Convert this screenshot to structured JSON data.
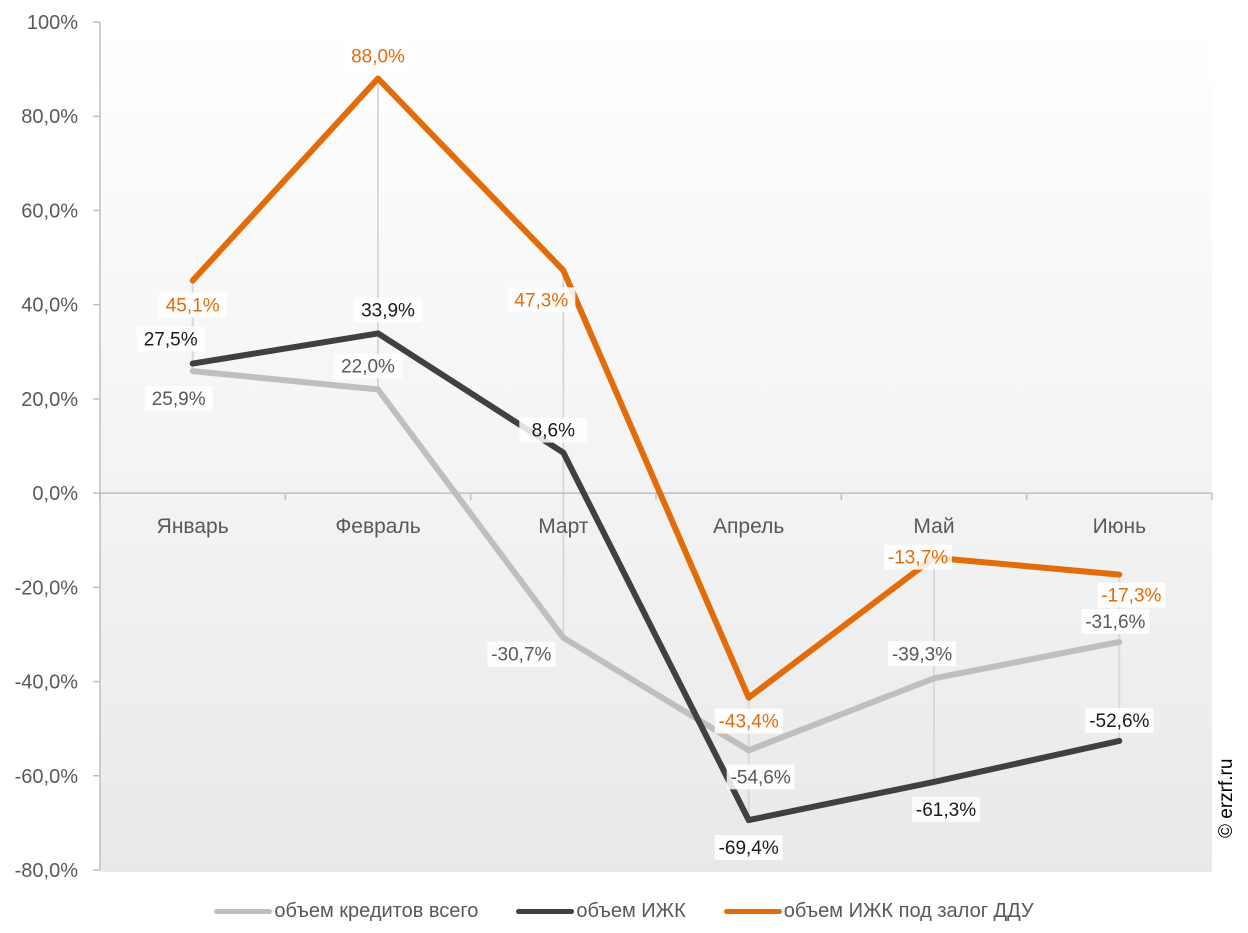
{
  "chart_data": {
    "type": "line",
    "categories": [
      "Январь",
      "Февраль",
      "Март",
      "Апрель",
      "Май",
      "Июнь"
    ],
    "y_ticks": [
      "100%",
      "80,0%",
      "60,0%",
      "40,0%",
      "20,0%",
      "0,0%",
      "-20,0%",
      "-40,0%",
      "-60,0%",
      "-80,0%"
    ],
    "ylim": [
      -80,
      100
    ],
    "grid": false,
    "legend_position": "bottom",
    "series": [
      {
        "name": "объем кредитов всего",
        "color": "#bfbfbf",
        "values": [
          25.9,
          22.0,
          -30.7,
          -54.6,
          -39.3,
          -31.6
        ],
        "labels": [
          "25,9%",
          "22,0%",
          "-30,7%",
          "-54,6%",
          "-39,3%",
          "-31,6%"
        ]
      },
      {
        "name": "объем ИЖК",
        "color": "#404040",
        "values": [
          27.5,
          33.9,
          8.6,
          -69.4,
          -61.3,
          -52.6
        ],
        "labels": [
          "27,5%",
          "33,9%",
          "8,6%",
          "-69,4%",
          "-61,3%",
          "-52,6%"
        ]
      },
      {
        "name": "объем ИЖК под залог ДДУ",
        "color": "#e36c0a",
        "values": [
          45.1,
          88.0,
          47.3,
          -43.4,
          -13.7,
          -17.3
        ],
        "labels": [
          "45,1%",
          "88,0%",
          "47,3%",
          "-43,4%",
          "-13,7%",
          "-17,3%"
        ]
      }
    ]
  },
  "credit": "© erzrf.ru"
}
